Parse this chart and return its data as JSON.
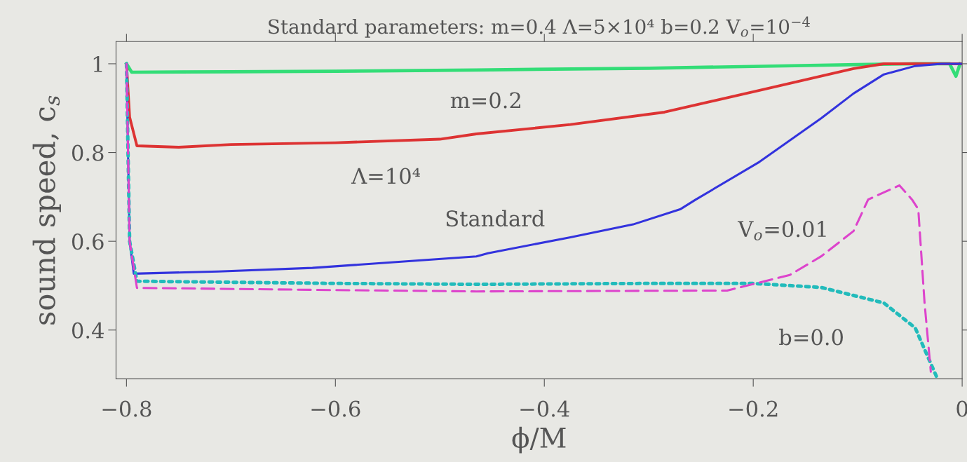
{
  "chart_data": {
    "type": "line",
    "title": "Standard parameters: m=0.4 Λ=5×10⁴ b=0.2 V$_{o}$=10$^{−4}$",
    "xlabel": "ϕ/M",
    "ylabel": "sound speed, c$_{s}$",
    "xlim": [
      -0.81,
      0.0
    ],
    "ylim": [
      0.29,
      1.05
    ],
    "xticks": [
      {
        "value": -0.8,
        "label": "−0.8"
      },
      {
        "value": -0.6,
        "label": "−0.6"
      },
      {
        "value": -0.4,
        "label": "−0.4"
      },
      {
        "value": -0.2,
        "label": "−0.2"
      },
      0
    ],
    "yticks": [
      0.4,
      0.6,
      0.8,
      1
    ],
    "grid": false,
    "legend": false,
    "marker": "none",
    "series": [
      {
        "name": "m=0.2",
        "color": "#33dd77",
        "line_style": "solid",
        "x": [
          -0.8,
          -0.795,
          -0.7,
          -0.6,
          -0.465,
          -0.3,
          -0.2,
          -0.1,
          -0.045,
          -0.012,
          -0.006,
          -0.002
        ],
        "values": [
          1.0,
          0.981,
          0.982,
          0.983,
          0.986,
          0.99,
          0.994,
          0.998,
          1.0,
          1.0,
          0.972,
          1.0
        ]
      },
      {
        "name": "Λ=10⁴",
        "color": "#dd3333",
        "line_style": "solid",
        "x": [
          -0.8,
          -0.797,
          -0.79,
          -0.75,
          -0.7,
          -0.6,
          -0.5,
          -0.465,
          -0.375,
          -0.285,
          -0.194,
          -0.104,
          -0.075,
          -0.045,
          0.0
        ],
        "values": [
          1.0,
          0.88,
          0.815,
          0.812,
          0.818,
          0.822,
          0.83,
          0.842,
          0.863,
          0.891,
          0.94,
          0.989,
          1.0,
          1.0,
          1.0
        ]
      },
      {
        "name": "Standard",
        "color": "#3333dd",
        "line_style": "solid",
        "x": [
          -0.8,
          -0.797,
          -0.793,
          -0.712,
          -0.622,
          -0.465,
          -0.454,
          -0.375,
          -0.315,
          -0.27,
          -0.255,
          -0.194,
          -0.135,
          -0.104,
          -0.075,
          -0.045,
          -0.02,
          0.0
        ],
        "values": [
          1.0,
          0.6,
          0.527,
          0.532,
          0.54,
          0.566,
          0.573,
          0.609,
          0.638,
          0.672,
          0.694,
          0.779,
          0.877,
          0.933,
          0.976,
          0.995,
          1.0,
          1.0
        ]
      },
      {
        "name": "b=0.0",
        "color": "#22bbbb",
        "line_style": "dotted",
        "x": [
          -0.8,
          -0.797,
          -0.79,
          -0.6,
          -0.465,
          -0.3,
          -0.2,
          -0.135,
          -0.075,
          -0.045,
          -0.024
        ],
        "values": [
          1.0,
          0.6,
          0.51,
          0.505,
          0.503,
          0.505,
          0.505,
          0.496,
          0.461,
          0.405,
          0.292
        ]
      },
      {
        "name": "V$_{o}$=0.01",
        "color": "#dd44cc",
        "line_style": "dashed",
        "x": [
          -0.8,
          -0.797,
          -0.79,
          -0.6,
          -0.465,
          -0.225,
          -0.165,
          -0.135,
          -0.104,
          -0.09,
          -0.06,
          -0.048,
          -0.042,
          -0.036,
          -0.03
        ],
        "values": [
          1.0,
          0.6,
          0.495,
          0.49,
          0.487,
          0.489,
          0.524,
          0.566,
          0.623,
          0.694,
          0.726,
          0.694,
          0.672,
          0.461,
          0.306
        ]
      }
    ]
  }
}
